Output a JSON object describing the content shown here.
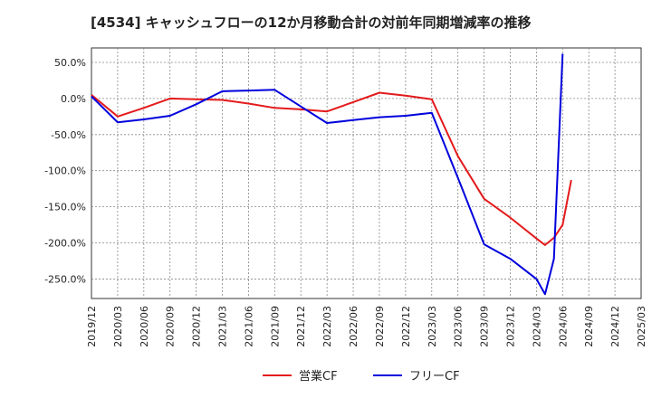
{
  "chart_data": {
    "type": "line",
    "title": "[4534]  キャッシュフローの12か月移動合計の対前年同期増減率の推移",
    "xlabel": "",
    "ylabel": "",
    "ylim": [
      -277,
      70
    ],
    "y_ticks": [
      50,
      0,
      -50,
      -100,
      -150,
      -200,
      -250
    ],
    "y_tick_labels": [
      "50.0%",
      "0.0%",
      "-50.0%",
      "-100.0%",
      "-150.0%",
      "-200.0%",
      "-250.0%"
    ],
    "x_ticks": [
      "2019/12",
      "2020/03",
      "2020/06",
      "2020/09",
      "2020/12",
      "2021/03",
      "2021/06",
      "2021/09",
      "2021/12",
      "2022/03",
      "2022/06",
      "2022/09",
      "2022/12",
      "2023/03",
      "2023/06",
      "2023/09",
      "2023/12",
      "2024/03",
      "2024/06",
      "2024/09",
      "2024/12",
      "2025/03"
    ],
    "grid": true,
    "legend_position": "bottom",
    "series": [
      {
        "name": "営業CF",
        "color": "#e41a1c",
        "points": [
          [
            0,
            5
          ],
          [
            1,
            -25
          ],
          [
            2,
            -13
          ],
          [
            3,
            0
          ],
          [
            4,
            -1
          ],
          [
            5,
            -2
          ],
          [
            6,
            -7
          ],
          [
            7,
            -13
          ],
          [
            8,
            -15
          ],
          [
            9,
            -18
          ],
          [
            10,
            -5
          ],
          [
            11,
            8
          ],
          [
            12,
            4
          ],
          [
            13,
            -1
          ],
          [
            14,
            -80
          ],
          [
            15,
            -139
          ],
          [
            16,
            -165
          ],
          [
            17,
            -194
          ],
          [
            17.33,
            -203
          ],
          [
            17.67,
            -193
          ],
          [
            18,
            -175
          ],
          [
            18.33,
            -113
          ]
        ]
      },
      {
        "name": "フリーCF",
        "color": "#0000dd",
        "points": [
          [
            0,
            3
          ],
          [
            1,
            -33
          ],
          [
            2,
            -29
          ],
          [
            3,
            -24
          ],
          [
            4,
            -8
          ],
          [
            5,
            10
          ],
          [
            6,
            11
          ],
          [
            7,
            12
          ],
          [
            8,
            -11
          ],
          [
            9,
            -34
          ],
          [
            10,
            -30
          ],
          [
            11,
            -26
          ],
          [
            12,
            -24
          ],
          [
            13,
            -20
          ],
          [
            14,
            -110
          ],
          [
            15,
            -202
          ],
          [
            16,
            -222
          ],
          [
            17,
            -250
          ],
          [
            17.33,
            -271
          ],
          [
            17.67,
            -222
          ],
          [
            18,
            62
          ]
        ]
      }
    ]
  }
}
